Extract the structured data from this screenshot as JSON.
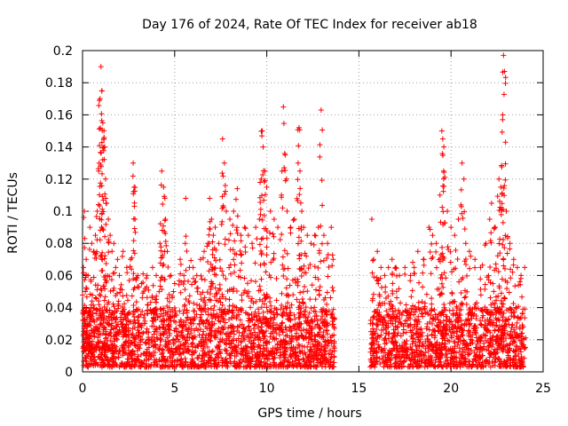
{
  "chart_data": {
    "type": "scatter",
    "title": "Day 176 of 2024, Rate Of TEC Index for receiver ab18",
    "xlabel": "GPS time / hours",
    "ylabel": "ROTI / TECUs",
    "xlim": [
      0,
      25
    ],
    "ylim": [
      0,
      0.2
    ],
    "xticks": [
      0,
      5,
      10,
      15,
      20,
      25
    ],
    "xtick_labels": [
      "0",
      "5",
      "10",
      "15",
      "20",
      "25"
    ],
    "yticks": [
      0,
      0.02,
      0.04,
      0.06,
      0.08,
      0.1,
      0.12,
      0.14,
      0.16,
      0.18,
      0.2
    ],
    "ytick_labels": [
      "0",
      "0.02",
      "0.04",
      "0.06",
      "0.08",
      "0.1",
      "0.12",
      "0.14",
      "0.16",
      "0.18",
      "0.2"
    ],
    "grid": true,
    "marker": "+",
    "series": [
      {
        "name": "ROTI",
        "color": "#ff0000",
        "points": [
          [
            0.05,
            0.065
          ],
          [
            0.1,
            0.1
          ],
          [
            0.15,
            0.05
          ],
          [
            0.2,
            0.07
          ],
          [
            0.3,
            0.06
          ],
          [
            0.4,
            0.09
          ],
          [
            0.5,
            0.08
          ],
          [
            0.6,
            0.075
          ],
          [
            0.7,
            0.085
          ],
          [
            0.8,
            0.1
          ],
          [
            0.9,
            0.13
          ],
          [
            0.95,
            0.17
          ],
          [
            1.0,
            0.19
          ],
          [
            1.05,
            0.175
          ],
          [
            1.1,
            0.155
          ],
          [
            1.15,
            0.145
          ],
          [
            1.2,
            0.14
          ],
          [
            1.25,
            0.12
          ],
          [
            1.3,
            0.105
          ],
          [
            1.4,
            0.095
          ],
          [
            1.5,
            0.085
          ],
          [
            1.6,
            0.075
          ],
          [
            1.7,
            0.08
          ],
          [
            1.8,
            0.065
          ],
          [
            1.9,
            0.07
          ],
          [
            2.0,
            0.06
          ],
          [
            2.2,
            0.075
          ],
          [
            2.4,
            0.065
          ],
          [
            2.6,
            0.07
          ],
          [
            2.75,
            0.13
          ],
          [
            2.8,
            0.115
          ],
          [
            2.85,
            0.095
          ],
          [
            3.0,
            0.06
          ],
          [
            3.2,
            0.055
          ],
          [
            3.5,
            0.06
          ],
          [
            3.8,
            0.065
          ],
          [
            4.0,
            0.06
          ],
          [
            4.2,
            0.08
          ],
          [
            4.3,
            0.125
          ],
          [
            4.4,
            0.115
          ],
          [
            4.5,
            0.095
          ],
          [
            4.6,
            0.075
          ],
          [
            4.8,
            0.06
          ],
          [
            5.0,
            0.055
          ],
          [
            5.3,
            0.07
          ],
          [
            5.5,
            0.06
          ],
          [
            5.6,
            0.108
          ],
          [
            5.8,
            0.065
          ],
          [
            6.0,
            0.065
          ],
          [
            6.2,
            0.06
          ],
          [
            6.4,
            0.07
          ],
          [
            6.6,
            0.075
          ],
          [
            6.8,
            0.08
          ],
          [
            6.9,
            0.108
          ],
          [
            7.0,
            0.095
          ],
          [
            7.1,
            0.085
          ],
          [
            7.2,
            0.09
          ],
          [
            7.4,
            0.08
          ],
          [
            7.6,
            0.145
          ],
          [
            7.7,
            0.13
          ],
          [
            7.8,
            0.1
          ],
          [
            8.0,
            0.095
          ],
          [
            8.2,
            0.1
          ],
          [
            8.4,
            0.114
          ],
          [
            8.6,
            0.085
          ],
          [
            8.8,
            0.09
          ],
          [
            9.0,
            0.085
          ],
          [
            9.2,
            0.08
          ],
          [
            9.4,
            0.09
          ],
          [
            9.6,
            0.095
          ],
          [
            9.7,
            0.12
          ],
          [
            9.75,
            0.15
          ],
          [
            9.8,
            0.14
          ],
          [
            9.9,
            0.125
          ],
          [
            10.0,
            0.115
          ],
          [
            10.2,
            0.1
          ],
          [
            10.4,
            0.095
          ],
          [
            10.6,
            0.09
          ],
          [
            10.8,
            0.11
          ],
          [
            10.9,
            0.165
          ],
          [
            11.0,
            0.135
          ],
          [
            11.1,
            0.1
          ],
          [
            11.3,
            0.09
          ],
          [
            11.5,
            0.095
          ],
          [
            11.7,
            0.13
          ],
          [
            11.75,
            0.152
          ],
          [
            11.8,
            0.125
          ],
          [
            11.9,
            0.1
          ],
          [
            12.0,
            0.09
          ],
          [
            12.2,
            0.085
          ],
          [
            12.4,
            0.08
          ],
          [
            12.6,
            0.085
          ],
          [
            12.8,
            0.09
          ],
          [
            12.95,
            0.163
          ],
          [
            13.1,
            0.085
          ],
          [
            13.3,
            0.08
          ],
          [
            13.5,
            0.09
          ],
          [
            13.6,
            0.07
          ],
          [
            15.7,
            0.095
          ],
          [
            15.8,
            0.07
          ],
          [
            16.0,
            0.075
          ],
          [
            16.2,
            0.065
          ],
          [
            16.4,
            0.06
          ],
          [
            16.6,
            0.065
          ],
          [
            16.8,
            0.07
          ],
          [
            17.0,
            0.065
          ],
          [
            17.2,
            0.06
          ],
          [
            17.5,
            0.065
          ],
          [
            17.8,
            0.06
          ],
          [
            18.0,
            0.065
          ],
          [
            18.2,
            0.075
          ],
          [
            18.5,
            0.07
          ],
          [
            18.8,
            0.09
          ],
          [
            19.0,
            0.085
          ],
          [
            19.2,
            0.08
          ],
          [
            19.4,
            0.11
          ],
          [
            19.5,
            0.15
          ],
          [
            19.55,
            0.145
          ],
          [
            19.6,
            0.125
          ],
          [
            19.8,
            0.1
          ],
          [
            20.0,
            0.09
          ],
          [
            20.2,
            0.085
          ],
          [
            20.4,
            0.095
          ],
          [
            20.6,
            0.13
          ],
          [
            20.7,
            0.12
          ],
          [
            20.8,
            0.08
          ],
          [
            21.0,
            0.075
          ],
          [
            21.3,
            0.07
          ],
          [
            21.6,
            0.065
          ],
          [
            21.9,
            0.08
          ],
          [
            22.1,
            0.095
          ],
          [
            22.2,
            0.105
          ],
          [
            22.4,
            0.09
          ],
          [
            22.6,
            0.12
          ],
          [
            22.7,
            0.115
          ],
          [
            22.8,
            0.157
          ],
          [
            22.85,
            0.197
          ],
          [
            22.9,
            0.187
          ],
          [
            23.0,
            0.1
          ],
          [
            23.2,
            0.08
          ],
          [
            23.4,
            0.07
          ],
          [
            23.6,
            0.065
          ],
          [
            23.8,
            0.06
          ],
          [
            24.0,
            0.065
          ]
        ],
        "baseline_band": {
          "ymin": 0.003,
          "ymax": 0.04,
          "x_segments": [
            [
              0,
              13.7
            ],
            [
              15.6,
              24.0
            ]
          ]
        }
      }
    ]
  }
}
